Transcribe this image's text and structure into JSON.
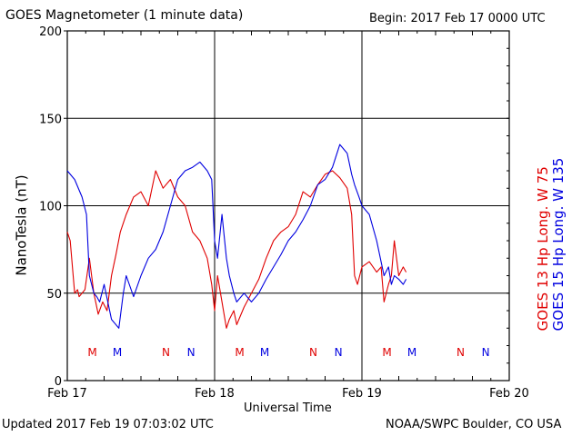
{
  "header": {
    "title": "GOES Magnetometer (1 minute data)",
    "begin": "Begin:  2017 Feb 17 0000 UTC"
  },
  "footer": {
    "updated": "Updated 2017 Feb 19 07:03:02 UTC",
    "credit": "NOAA/SWPC Boulder, CO USA"
  },
  "colors": {
    "goes13": "#e00000",
    "goes15": "#0000e0",
    "grid": "#000000"
  },
  "chart_data": {
    "type": "line",
    "title": "GOES Magnetometer (1 minute data)",
    "xlabel": "Universal Time",
    "ylabel": "NanoTesla (nT)",
    "ylim": [
      0,
      200
    ],
    "xlim_days": [
      0,
      3
    ],
    "x_tick_labels": [
      "Feb 17",
      "Feb 18",
      "Feb 19",
      "Feb 20"
    ],
    "y_ticks": [
      0,
      50,
      100,
      150,
      200
    ],
    "grid": true,
    "series": [
      {
        "name": "GOES 13 Hp  Long. W 75",
        "color": "#e00000",
        "x": [
          0,
          0.02,
          0.05,
          0.07,
          0.08,
          0.12,
          0.15,
          0.18,
          0.2,
          0.21,
          0.24,
          0.27,
          0.3,
          0.33,
          0.36,
          0.4,
          0.45,
          0.5,
          0.55,
          0.6,
          0.65,
          0.7,
          0.75,
          0.8,
          0.85,
          0.9,
          0.95,
          0.98,
          1.0,
          1.02,
          1.05,
          1.08,
          1.1,
          1.13,
          1.15,
          1.2,
          1.25,
          1.3,
          1.35,
          1.4,
          1.45,
          1.5,
          1.55,
          1.6,
          1.65,
          1.7,
          1.75,
          1.8,
          1.85,
          1.9,
          1.93,
          1.95,
          1.97,
          2.0,
          2.05,
          2.1,
          2.13,
          2.15,
          2.18,
          2.2,
          2.22,
          2.25,
          2.28,
          2.3
        ],
        "values": [
          85,
          80,
          50,
          52,
          48,
          52,
          70,
          50,
          42,
          38,
          45,
          40,
          60,
          72,
          85,
          95,
          105,
          108,
          100,
          120,
          110,
          115,
          105,
          100,
          85,
          80,
          70,
          55,
          40,
          60,
          45,
          30,
          35,
          40,
          32,
          42,
          50,
          58,
          70,
          80,
          85,
          88,
          95,
          108,
          105,
          112,
          118,
          120,
          116,
          110,
          95,
          60,
          55,
          65,
          68,
          62,
          65,
          45,
          55,
          60,
          80,
          60,
          65,
          62
        ]
      },
      {
        "name": "GOES 15 Hp  Long. W 135",
        "color": "#0000e0",
        "x": [
          0,
          0.05,
          0.1,
          0.13,
          0.15,
          0.18,
          0.2,
          0.22,
          0.25,
          0.3,
          0.35,
          0.38,
          0.4,
          0.45,
          0.5,
          0.55,
          0.6,
          0.65,
          0.7,
          0.75,
          0.8,
          0.85,
          0.9,
          0.95,
          0.98,
          1.0,
          1.02,
          1.05,
          1.08,
          1.1,
          1.13,
          1.15,
          1.2,
          1.25,
          1.3,
          1.35,
          1.4,
          1.45,
          1.5,
          1.55,
          1.6,
          1.65,
          1.7,
          1.75,
          1.8,
          1.85,
          1.9,
          1.93,
          1.95,
          1.98,
          2.0,
          2.05,
          2.1,
          2.15,
          2.18,
          2.2,
          2.22,
          2.25,
          2.28,
          2.3
        ],
        "values": [
          120,
          115,
          105,
          95,
          60,
          50,
          48,
          45,
          55,
          35,
          30,
          50,
          60,
          48,
          60,
          70,
          75,
          85,
          100,
          115,
          120,
          122,
          125,
          120,
          115,
          80,
          70,
          95,
          70,
          60,
          50,
          45,
          50,
          45,
          50,
          58,
          65,
          72,
          80,
          85,
          92,
          100,
          112,
          115,
          122,
          135,
          130,
          118,
          112,
          105,
          100,
          95,
          80,
          60,
          65,
          55,
          60,
          58,
          55,
          58
        ]
      }
    ],
    "markers": [
      {
        "label": "M",
        "day": 0.17,
        "color": "#e00000"
      },
      {
        "label": "M",
        "day": 0.34,
        "color": "#0000e0"
      },
      {
        "label": "N",
        "day": 0.67,
        "color": "#e00000"
      },
      {
        "label": "N",
        "day": 0.84,
        "color": "#0000e0"
      },
      {
        "label": "M",
        "day": 1.17,
        "color": "#e00000"
      },
      {
        "label": "M",
        "day": 1.34,
        "color": "#0000e0"
      },
      {
        "label": "N",
        "day": 1.67,
        "color": "#e00000"
      },
      {
        "label": "N",
        "day": 1.84,
        "color": "#0000e0"
      },
      {
        "label": "M",
        "day": 2.17,
        "color": "#e00000"
      },
      {
        "label": "M",
        "day": 2.34,
        "color": "#0000e0"
      },
      {
        "label": "N",
        "day": 2.67,
        "color": "#e00000"
      },
      {
        "label": "N",
        "day": 2.84,
        "color": "#0000e0"
      }
    ]
  }
}
